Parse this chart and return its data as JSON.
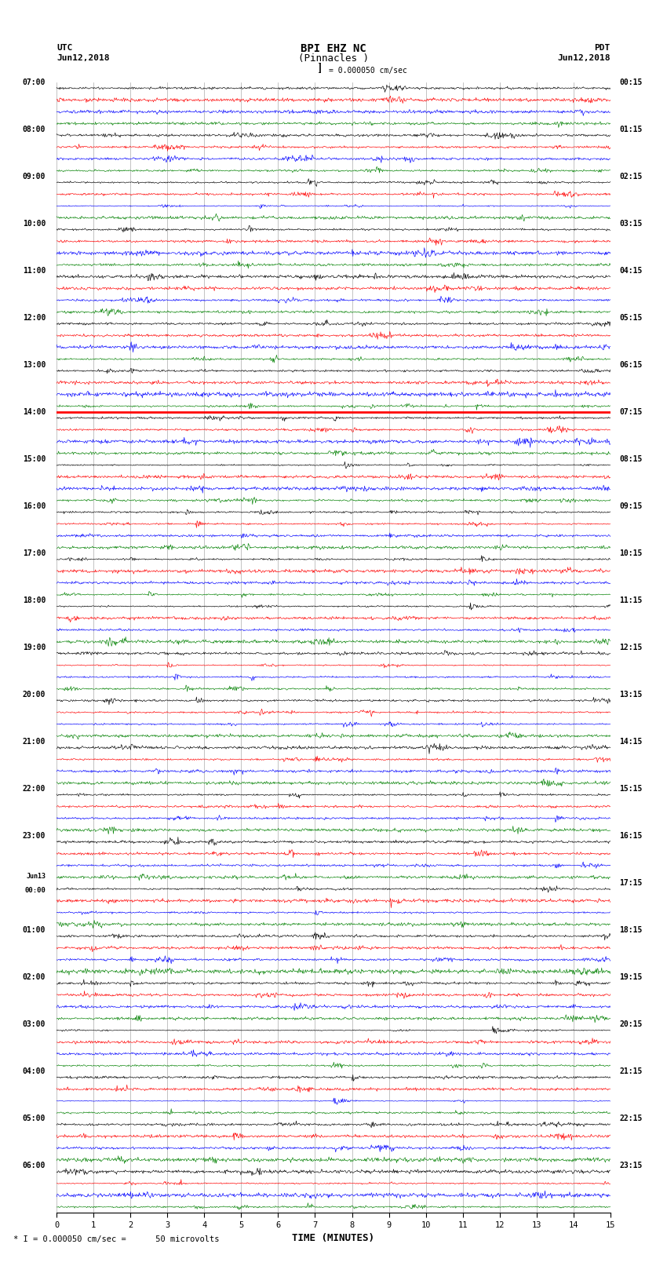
{
  "title_line1": "BPI EHZ NC",
  "title_line2": "(Pinnacles )",
  "scale_label": "= 0.000050 cm/sec",
  "left_label_top": "UTC",
  "left_label_date": "Jun12,2018",
  "right_label_top": "PDT",
  "right_label_date": "Jun12,2018",
  "bottom_label": "TIME (MINUTES)",
  "bottom_note": "* I = 0.000050 cm/sec =      50 microvolts",
  "utc_times": [
    "07:00",
    "08:00",
    "09:00",
    "10:00",
    "11:00",
    "12:00",
    "13:00",
    "14:00",
    "15:00",
    "16:00",
    "17:00",
    "18:00",
    "19:00",
    "20:00",
    "21:00",
    "22:00",
    "23:00",
    "Jun13",
    "00:00",
    "01:00",
    "02:00",
    "03:00",
    "04:00",
    "05:00",
    "06:00"
  ],
  "pdt_times": [
    "00:15",
    "01:15",
    "02:15",
    "03:15",
    "04:15",
    "05:15",
    "06:15",
    "07:15",
    "08:15",
    "09:15",
    "10:15",
    "11:15",
    "12:15",
    "13:15",
    "14:15",
    "15:15",
    "16:15",
    "17:15",
    "18:15",
    "19:15",
    "20:15",
    "21:15",
    "22:15",
    "23:15"
  ],
  "n_rows": 24,
  "n_traces_per_row": 4,
  "trace_colors": [
    "black",
    "red",
    "blue",
    "green"
  ],
  "x_min": 0,
  "x_max": 15,
  "x_ticks": [
    0,
    1,
    2,
    3,
    4,
    5,
    6,
    7,
    8,
    9,
    10,
    11,
    12,
    13,
    14,
    15
  ],
  "background_color": "white",
  "grid_color": "#888888",
  "fig_width": 8.5,
  "fig_height": 16.13,
  "thick_red_row": 7
}
